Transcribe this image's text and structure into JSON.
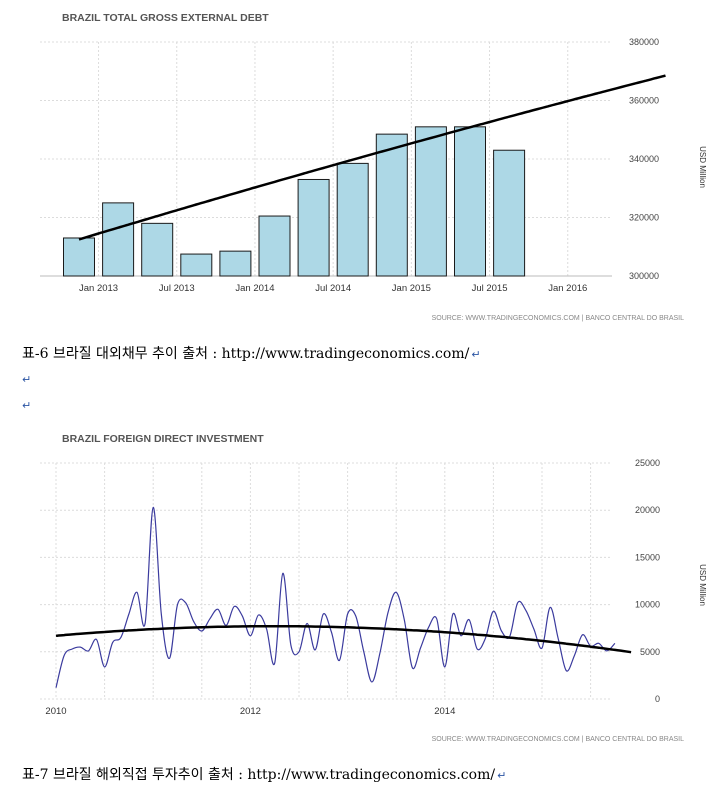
{
  "charts": [
    {
      "title": "BRAZIL TOTAL GROSS EXTERNAL DEBT",
      "unit": "USD Million",
      "source": "SOURCE: WWW.TRADINGECONOMICS.COM  |  BANCO CENTRAL DO BRASIL",
      "y_ticks": [
        "380000",
        "360000",
        "340000",
        "320000",
        "300000"
      ],
      "x_ticks": [
        "Jan 2013",
        "Jul 2013",
        "Jan 2014",
        "Jul 2014",
        "Jan 2015",
        "Jul 2015",
        "Jan 2016"
      ]
    },
    {
      "title": "BRAZIL FOREIGN DIRECT INVESTMENT",
      "unit": "USD Million",
      "source": "SOURCE: WWW.TRADINGECONOMICS.COM  |  BANCO CENTRAL DO BRASIL",
      "y_ticks": [
        "25000",
        "20000",
        "15000",
        "10000",
        "5000",
        "0"
      ],
      "x_ticks": [
        "2010",
        "2012",
        "2014"
      ]
    }
  ],
  "captions": [
    "표-6 브라질 대외채무 추이 출처 : http://www.tradingeconomics.com/",
    "표-7 브라질 해외직접 투자추이 출처 : http://www.tradingeconomics.com/"
  ],
  "return_mark": "↵",
  "chart_data": [
    {
      "type": "bar",
      "title": "BRAZIL TOTAL GROSS EXTERNAL DEBT",
      "ylabel": "USD Million",
      "ylim": [
        300000,
        380000
      ],
      "x_tick_labels": [
        "Jan 2013",
        "Jul 2013",
        "Jan 2014",
        "Jul 2014",
        "Jan 2015",
        "Jul 2015",
        "Jan 2016"
      ],
      "categories": [
        "Q4 2012",
        "Q1 2013",
        "Q2 2013",
        "Q3 2013",
        "Q4 2013",
        "Q1 2014",
        "Q2 2014",
        "Q3 2014",
        "Q4 2014",
        "Q1 2015",
        "Q2 2015",
        "Q3 2015"
      ],
      "values": [
        313000,
        325000,
        318000,
        307500,
        308500,
        320500,
        333000,
        338500,
        348500,
        351000,
        351000,
        343000
      ],
      "trend": {
        "type": "line",
        "x_start": "Q4 2012",
        "y_start": 312500,
        "x_end": "Q3 2016",
        "y_end": 368500,
        "shape": "quadratic"
      },
      "grid": true,
      "colors": {
        "bar": "#add8e6",
        "bar_edge": "#1a1a1a",
        "trend": "#000000"
      }
    },
    {
      "type": "line",
      "title": "BRAZIL FOREIGN DIRECT INVESTMENT",
      "ylabel": "USD Million",
      "ylim": [
        0,
        25000
      ],
      "x_tick_labels": [
        "2010",
        "2012",
        "2014"
      ],
      "x_start": "Jan 2010",
      "frequency": "monthly",
      "series": [
        {
          "values": [
            1200,
            4600,
            5300,
            5500,
            5100,
            6300,
            3400,
            6000,
            6500,
            9000,
            11300,
            8000,
            20300,
            9000,
            4300,
            10000,
            10200,
            8200,
            7200,
            8500,
            9500,
            7800,
            9800,
            8800,
            6700,
            8900,
            7400,
            3800,
            13300,
            5700,
            5000,
            8000,
            5200,
            9000,
            7100,
            4100,
            9000,
            8800,
            5000,
            1800,
            4900,
            9200,
            11300,
            8400,
            3300,
            5400,
            7600,
            8500,
            3400,
            9000,
            6700,
            8400,
            5300,
            6400,
            9300,
            7200,
            6600,
            10200,
            9400,
            7400,
            5400,
            9700,
            6400,
            3000,
            4600,
            6800,
            5600,
            5900,
            5100,
            5900
          ]
        },
        {
          "values": [
            6700,
            7700,
            7500,
            5200
          ],
          "x": [
            "Jan 2010",
            "Jan 2012",
            "Jan 2014",
            "Oct 2015"
          ],
          "shape": "quadratic trend"
        }
      ],
      "grid": true,
      "colors": {
        "series": "#3b3b9e",
        "trend": "#000000"
      }
    }
  ]
}
